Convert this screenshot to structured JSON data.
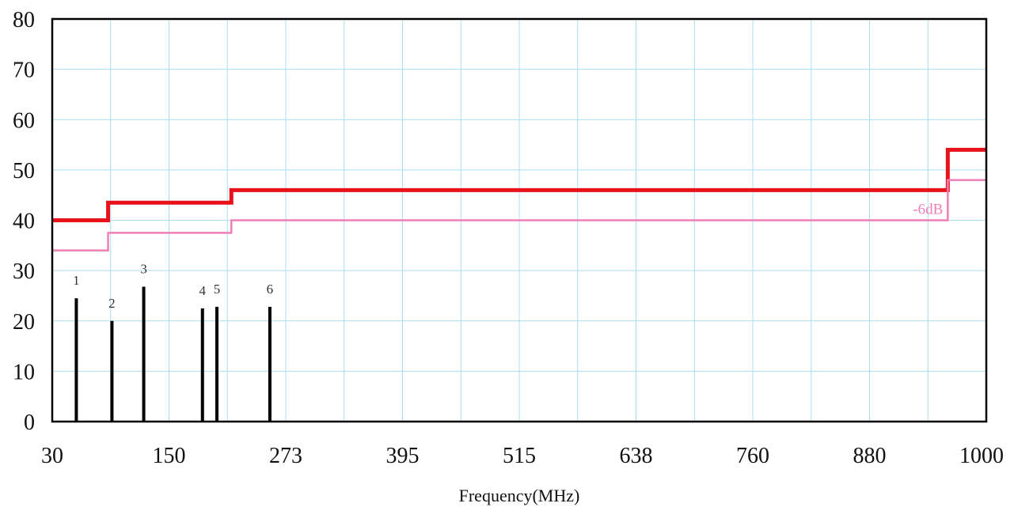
{
  "chart_data": {
    "type": "bar",
    "xlabel": "Frequency(MHz)",
    "ylabel": "",
    "ylim": [
      0,
      80
    ],
    "yticks": [
      "0",
      "10",
      "20",
      "30",
      "40",
      "50",
      "60",
      "70",
      "80"
    ],
    "xticks": [
      "30",
      "150",
      "273",
      "395",
      "515",
      "638",
      "760",
      "880",
      "1000"
    ],
    "grid": true,
    "series": [
      {
        "type": "step",
        "color": "#e8121a",
        "steps": [
          {
            "x0": 30,
            "x1": 88,
            "y": 40.0
          },
          {
            "x0": 88,
            "x1": 216,
            "y": 43.5
          },
          {
            "x0": 216,
            "x1": 960,
            "y": 46.0
          },
          {
            "x0": 960,
            "x1": 1000,
            "y": 54.0
          }
        ]
      },
      {
        "type": "step",
        "color": "#ef7fb6",
        "label": "-6dB",
        "steps": [
          {
            "x0": 30,
            "x1": 88,
            "y": 34.0
          },
          {
            "x0": 88,
            "x1": 216,
            "y": 37.5
          },
          {
            "x0": 216,
            "x1": 960,
            "y": 40.0
          },
          {
            "x0": 960,
            "x1": 1000,
            "y": 48.0
          }
        ]
      }
    ],
    "markers": [
      {
        "label": "1",
        "x": 55,
        "y": 24.5
      },
      {
        "label": "2",
        "x": 92,
        "y": 20.0
      },
      {
        "label": "3",
        "x": 125,
        "y": 26.8
      },
      {
        "label": "4",
        "x": 186,
        "y": 22.5
      },
      {
        "label": "5",
        "x": 201,
        "y": 22.8
      },
      {
        "label": "6",
        "x": 256,
        "y": 22.8
      }
    ]
  }
}
